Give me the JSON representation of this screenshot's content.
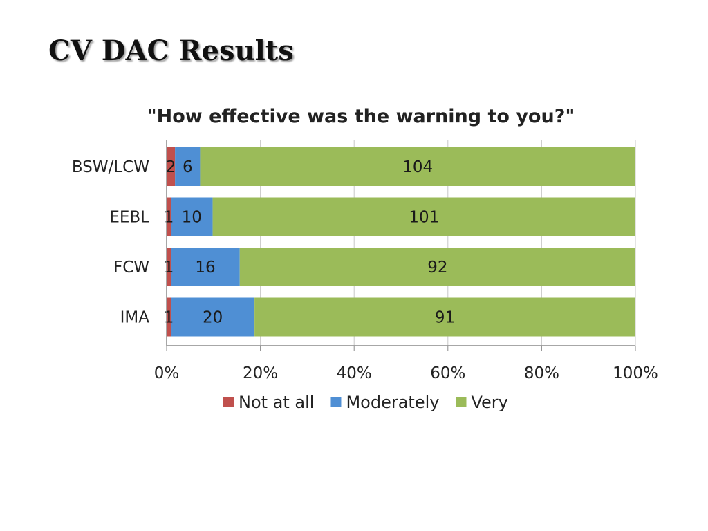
{
  "slide": {
    "title": "CV DAC Results"
  },
  "chart_data": {
    "type": "bar",
    "orientation": "horizontal",
    "stacked": "percent",
    "title": "\"How effective was the warning to you?\"",
    "categories": [
      "BSW/LCW",
      "EEBL",
      "FCW",
      "IMA"
    ],
    "series": [
      {
        "name": "Not at all",
        "color": "#c0504d",
        "values": [
          2,
          1,
          1,
          1
        ]
      },
      {
        "name": "Moderately",
        "color": "#4f8fd4",
        "values": [
          6,
          10,
          16,
          20
        ]
      },
      {
        "name": "Very",
        "color": "#9bbb59",
        "values": [
          104,
          101,
          92,
          91
        ]
      }
    ],
    "xaxis": {
      "ticks": [
        "0%",
        "20%",
        "40%",
        "60%",
        "80%",
        "100%"
      ],
      "range": [
        0,
        100
      ]
    },
    "grid": true,
    "legend": "bottom"
  }
}
